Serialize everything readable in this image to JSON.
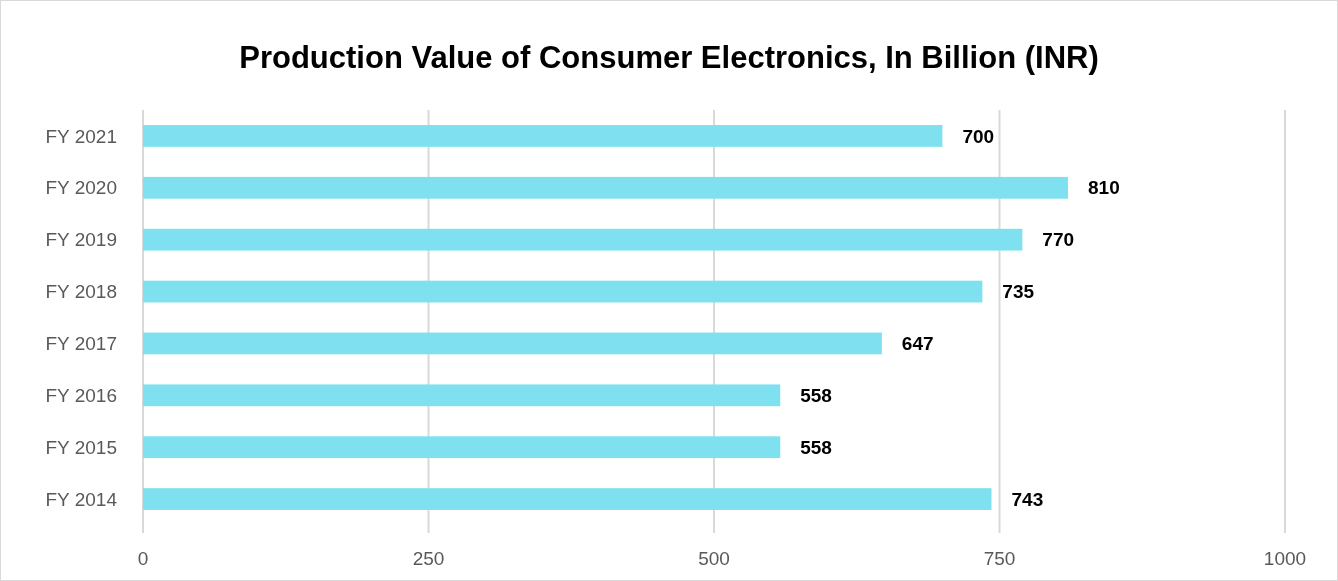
{
  "chart_data": {
    "type": "bar",
    "orientation": "horizontal",
    "title": "Production Value of Consumer Electronics, In Billion (INR)",
    "categories": [
      "FY 2021",
      "FY 2020",
      "FY 2019",
      "FY 2018",
      "FY 2017",
      "FY 2016",
      "FY 2015",
      "FY 2014"
    ],
    "values": [
      700,
      810,
      770,
      735,
      647,
      558,
      558,
      743
    ],
    "color": "#7fe1ef",
    "xlim": [
      0,
      1000
    ],
    "xticks": [
      0,
      250,
      500,
      750,
      1000
    ],
    "grid": "x",
    "data_labels": true
  }
}
